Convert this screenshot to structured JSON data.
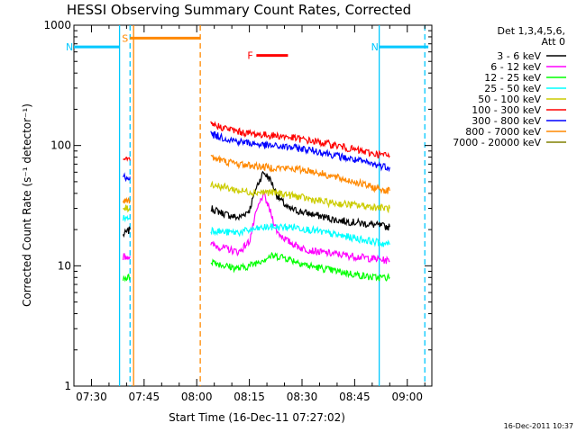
{
  "chart_data": {
    "type": "line",
    "title": "HESSI Observing Summary Count Rates, Corrected",
    "xlabel": "Start Time (16-Dec-11 07:27:02)",
    "ylabel": "Corrected Count Rate (s⁻¹ detector⁻¹)",
    "y_scale": "log",
    "ylim": [
      1,
      1000
    ],
    "xlim": [
      "07:25",
      "09:07"
    ],
    "x_ticks": [
      "07:30",
      "07:45",
      "08:00",
      "08:15",
      "08:30",
      "08:45",
      "09:00"
    ],
    "y_ticks": [
      "1",
      "10",
      "100",
      "1000"
    ],
    "legend_header": [
      "Det 1,3,4,5,6,",
      "Att 0"
    ],
    "legend_placement": "right, outside plot",
    "timestamp": "16-Dec-2011 10:37",
    "grid": false,
    "markers": [
      {
        "label": "S",
        "color": "#ff8800",
        "x_start": "07:41",
        "x_end": "08:01",
        "y": 780
      },
      {
        "label": "N",
        "color": "#00c8ff",
        "x_start": "07:25",
        "x_end": "07:38",
        "y": 660
      },
      {
        "label": "N",
        "color": "#00c8ff",
        "x_start": "08:52",
        "x_end": "09:06",
        "y": 660
      },
      {
        "label": "F",
        "color": "#ff0000",
        "x_start": "08:17",
        "x_end": "08:26",
        "y": 560
      }
    ],
    "vertical_lines": [
      {
        "x": "07:38",
        "color": "#00c8ff",
        "style": "solid"
      },
      {
        "x": "07:41",
        "color": "#00c8ff",
        "style": "dashed"
      },
      {
        "x": "07:42",
        "color": "#ff8800",
        "style": "solid"
      },
      {
        "x": "08:01",
        "color": "#ff8800",
        "style": "dashed"
      },
      {
        "x": "08:52",
        "color": "#00c8ff",
        "style": "solid"
      },
      {
        "x": "09:05",
        "color": "#00c8ff",
        "style": "dashed"
      }
    ],
    "series": [
      {
        "name": "3 - 6 keV",
        "color": "#000000",
        "segments": [
          {
            "x": [
              "07:39",
              "07:41"
            ],
            "y": [
              18,
              20
            ]
          },
          {
            "x": [
              "08:04",
              "08:08",
              "08:12",
              "08:15",
              "08:17",
              "08:19",
              "08:21",
              "08:23",
              "08:26",
              "08:30",
              "08:35",
              "08:40",
              "08:45",
              "08:50",
              "08:55"
            ],
            "y": [
              30,
              27,
              25,
              29,
              45,
              60,
              52,
              38,
              30,
              28,
              26,
              24,
              23,
              22,
              21
            ]
          }
        ]
      },
      {
        "name": "6 - 12 keV",
        "color": "#ff00ff",
        "segments": [
          {
            "x": [
              "07:39",
              "07:41"
            ],
            "y": [
              12,
              12
            ]
          },
          {
            "x": [
              "08:04",
              "08:08",
              "08:12",
              "08:15",
              "08:17",
              "08:19",
              "08:21",
              "08:23",
              "08:26",
              "08:30",
              "08:35",
              "08:40",
              "08:45",
              "08:50",
              "08:55"
            ],
            "y": [
              15,
              14,
              13,
              16,
              28,
              40,
              28,
              19,
              16,
              14,
              13,
              12.5,
              12,
              11.5,
              11
            ]
          }
        ]
      },
      {
        "name": "12 - 25 keV",
        "color": "#00ff00",
        "segments": [
          {
            "x": [
              "07:39",
              "07:41"
            ],
            "y": [
              8,
              8
            ]
          },
          {
            "x": [
              "08:04",
              "08:08",
              "08:12",
              "08:15",
              "08:18",
              "08:21",
              "08:24",
              "08:28",
              "08:32",
              "08:36",
              "08:40",
              "08:45",
              "08:50",
              "08:55"
            ],
            "y": [
              11,
              10,
              9.5,
              10,
              11,
              12,
              12,
              11,
              10,
              9.5,
              9,
              8.5,
              8,
              8
            ]
          }
        ]
      },
      {
        "name": "25 - 50 keV",
        "color": "#00ffff",
        "segments": [
          {
            "x": [
              "07:39",
              "07:41"
            ],
            "y": [
              25,
              25
            ]
          },
          {
            "x": [
              "08:04",
              "08:08",
              "08:12",
              "08:16",
              "08:20",
              "08:24",
              "08:28",
              "08:32",
              "08:36",
              "08:40",
              "08:45",
              "08:50",
              "08:55"
            ],
            "y": [
              20,
              19,
              19,
              20,
              21,
              21,
              21,
              20,
              19,
              18,
              17,
              16,
              15
            ]
          }
        ]
      },
      {
        "name": "50 - 100 keV",
        "color": "#cccc00",
        "segments": [
          {
            "x": [
              "07:39",
              "07:41"
            ],
            "y": [
              30,
              30
            ]
          },
          {
            "x": [
              "08:04",
              "08:08",
              "08:12",
              "08:16",
              "08:20",
              "08:24",
              "08:28",
              "08:32",
              "08:36",
              "08:40",
              "08:45",
              "08:50",
              "08:55"
            ],
            "y": [
              48,
              45,
              42,
              41,
              41,
              40,
              38,
              36,
              34,
              33,
              32,
              31,
              30
            ]
          }
        ]
      },
      {
        "name": "100 - 300 keV",
        "color": "#ff0000",
        "segments": [
          {
            "x": [
              "07:39",
              "07:41"
            ],
            "y": [
              75,
              75
            ]
          },
          {
            "x": [
              "08:04",
              "08:08",
              "08:12",
              "08:16",
              "08:20",
              "08:24",
              "08:28",
              "08:32",
              "08:36",
              "08:40",
              "08:45",
              "08:50",
              "08:55"
            ],
            "y": [
              150,
              140,
              130,
              125,
              122,
              120,
              115,
              110,
              105,
              100,
              92,
              86,
              82
            ]
          }
        ]
      },
      {
        "name": "300 - 800 keV",
        "color": "#0000ff",
        "segments": [
          {
            "x": [
              "07:39",
              "07:41"
            ],
            "y": [
              55,
              55
            ]
          },
          {
            "x": [
              "08:04",
              "08:08",
              "08:12",
              "08:16",
              "08:20",
              "08:24",
              "08:28",
              "08:32",
              "08:36",
              "08:40",
              "08:45",
              "08:50",
              "08:55"
            ],
            "y": [
              125,
              115,
              108,
              104,
              100,
              98,
              96,
              92,
              88,
              82,
              76,
              70,
              66
            ]
          }
        ]
      },
      {
        "name": "800 - 7000 keV",
        "color": "#ff8800",
        "segments": [
          {
            "x": [
              "07:39",
              "07:41"
            ],
            "y": [
              35,
              35
            ]
          },
          {
            "x": [
              "08:04",
              "08:08",
              "08:12",
              "08:16",
              "08:20",
              "08:24",
              "08:28",
              "08:32",
              "08:36",
              "08:40",
              "08:45",
              "08:50",
              "08:55"
            ],
            "y": [
              80,
              74,
              70,
              68,
              66,
              65,
              64,
              62,
              58,
              54,
              50,
              45,
              42
            ]
          }
        ]
      },
      {
        "name": "7000 - 20000 keV",
        "color": "#808000",
        "segments": []
      }
    ]
  }
}
